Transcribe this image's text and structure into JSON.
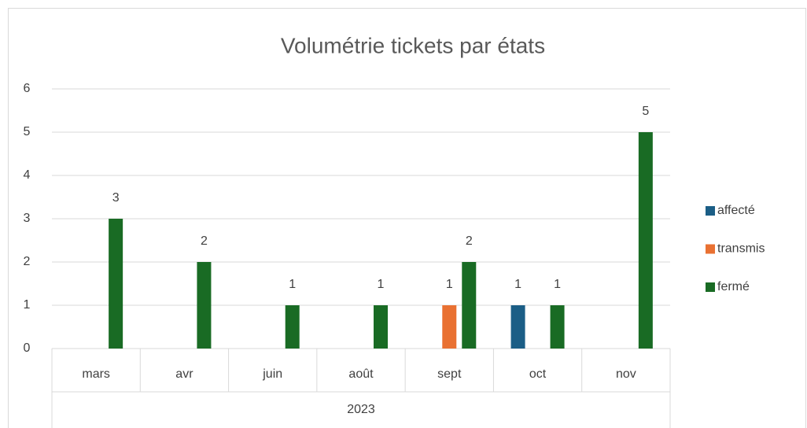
{
  "chart_data": {
    "type": "bar",
    "title": "Volumétrie tickets par états",
    "categories": [
      "mars",
      "avr",
      "juin",
      "août",
      "sept",
      "oct",
      "nov"
    ],
    "x_group": "2023",
    "series": [
      {
        "name": "affecté",
        "color": "#1b5e86",
        "values": [
          null,
          null,
          null,
          null,
          null,
          1,
          null
        ]
      },
      {
        "name": "transmis",
        "color": "#e97132",
        "values": [
          null,
          null,
          null,
          null,
          1,
          null,
          null
        ]
      },
      {
        "name": "fermé",
        "color": "#196b24",
        "values": [
          3,
          2,
          1,
          1,
          2,
          1,
          5
        ]
      }
    ],
    "ylim": [
      0,
      6
    ],
    "yticks": [
      0,
      1,
      2,
      3,
      4,
      5,
      6
    ],
    "grid": true,
    "legend": "right"
  }
}
